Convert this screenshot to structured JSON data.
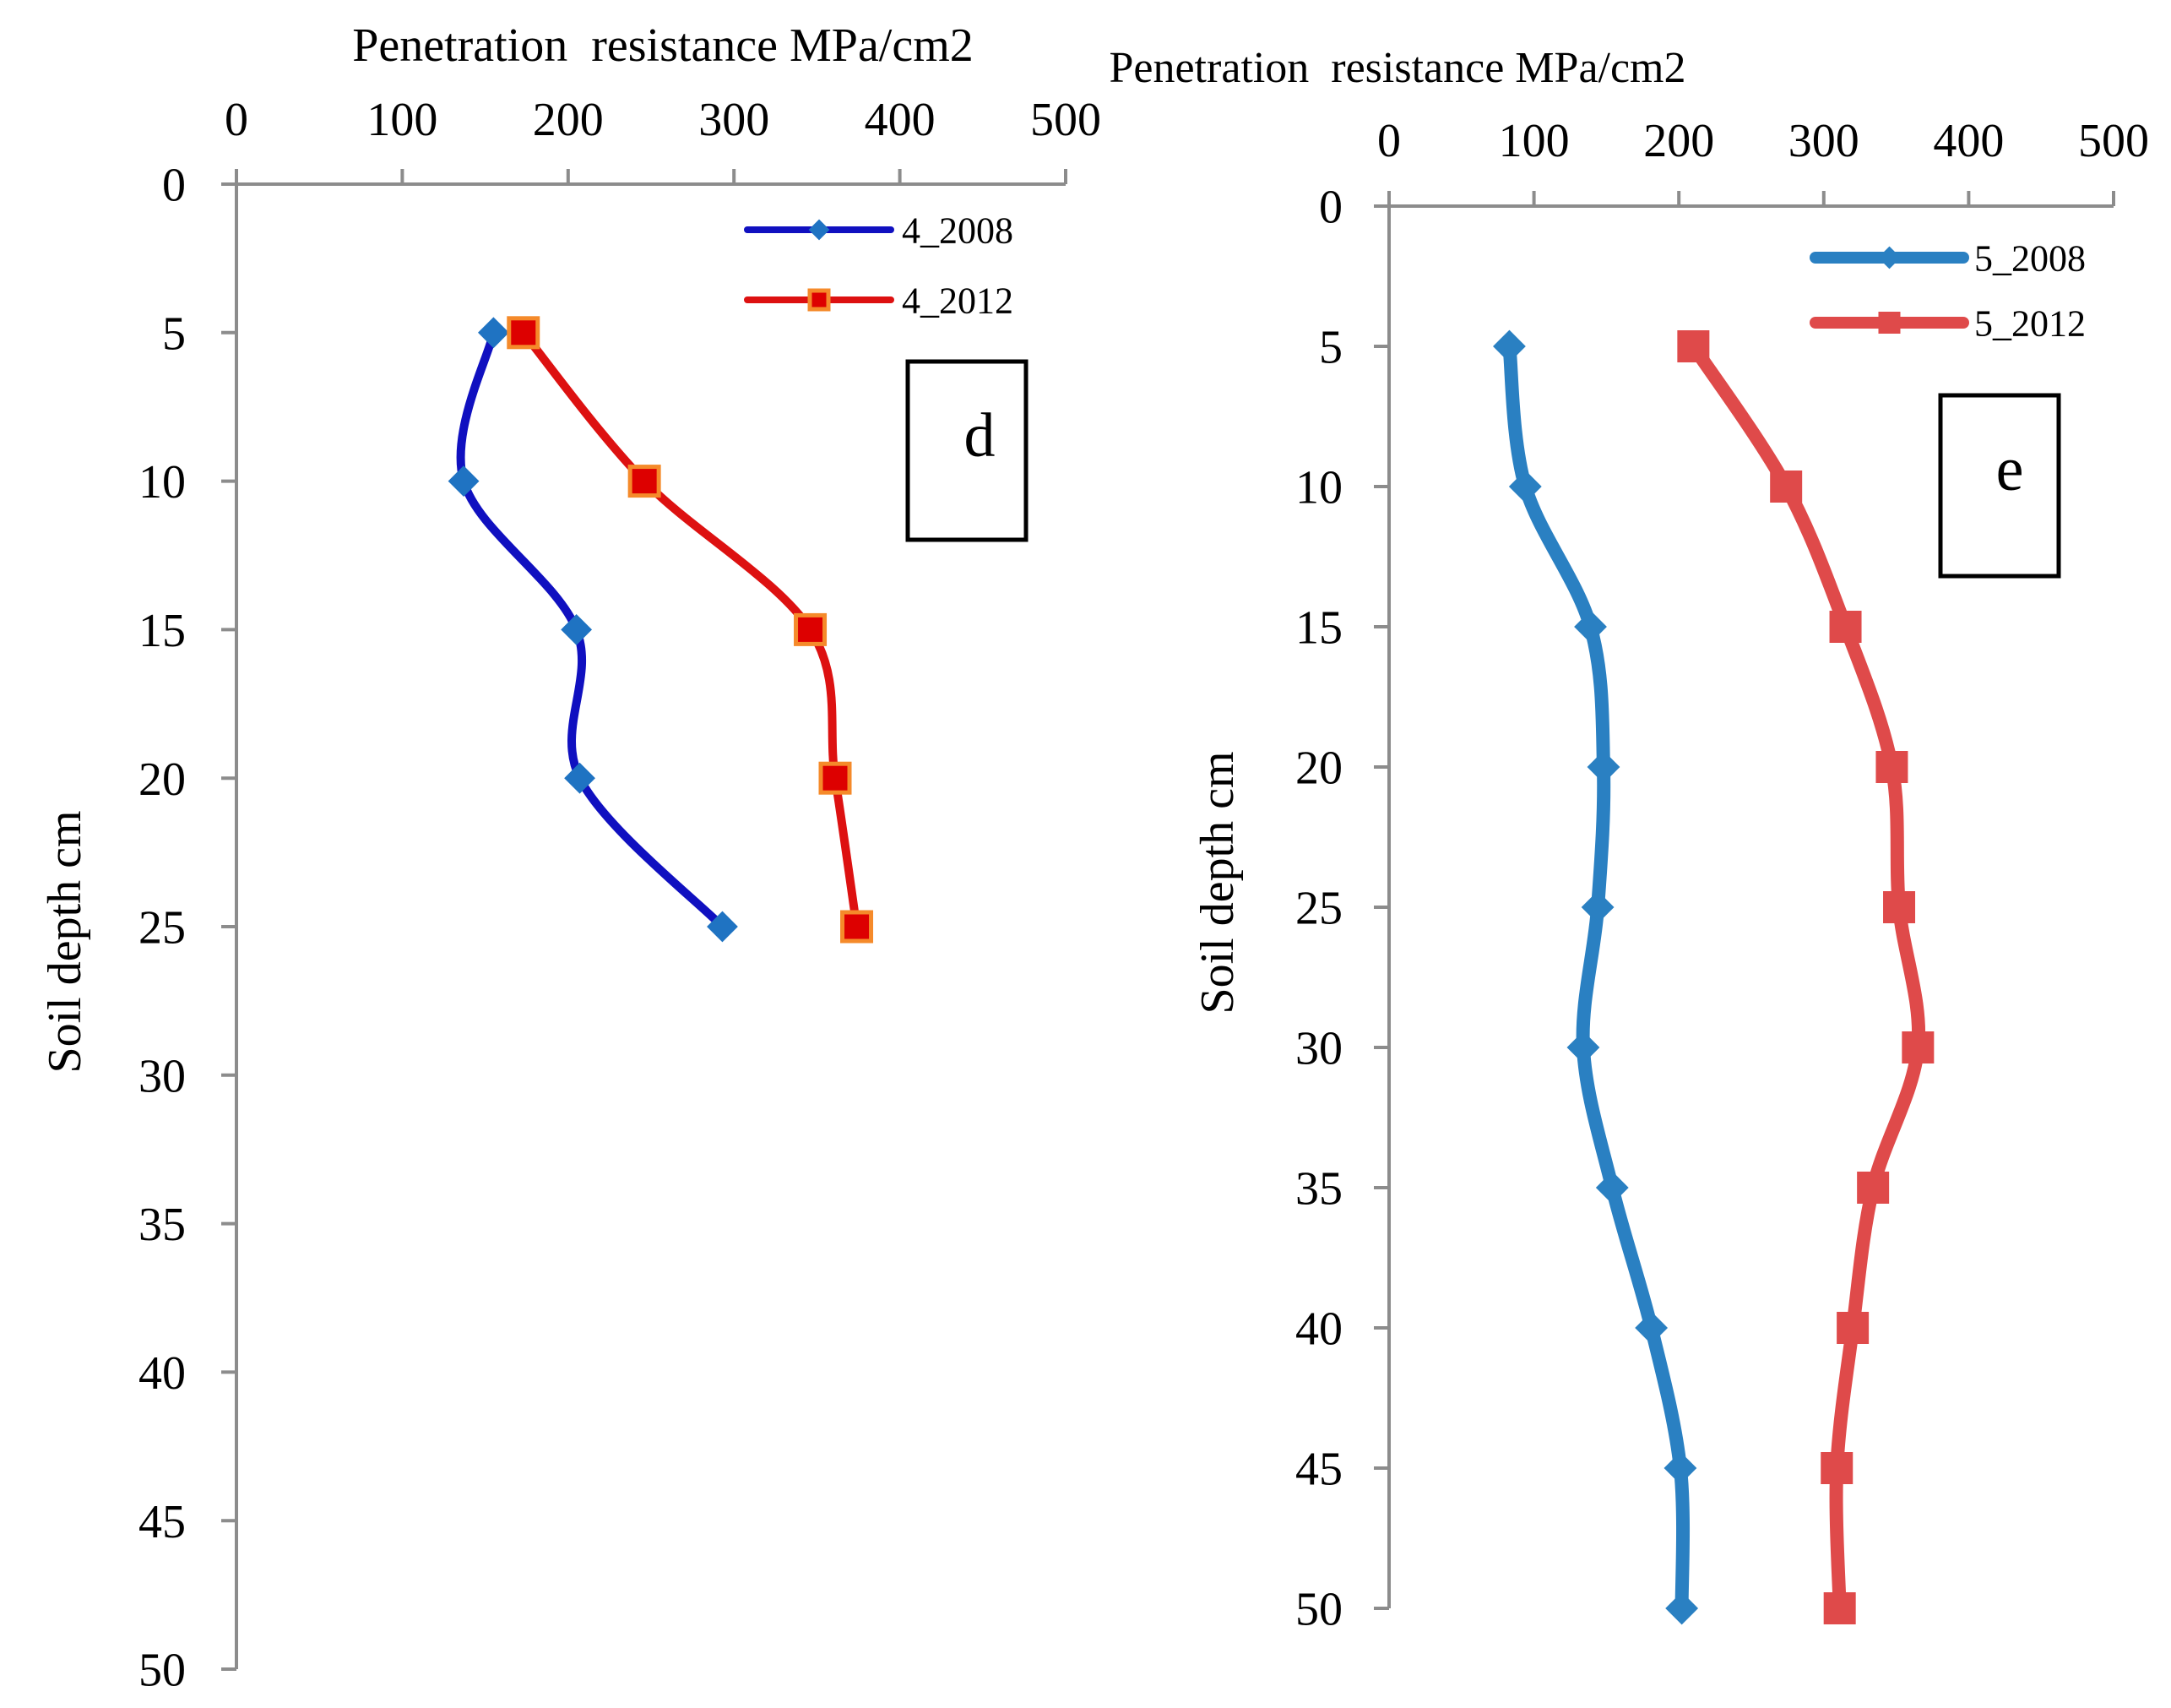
{
  "chart_data": [
    {
      "type": "line",
      "panel_label": "d",
      "xlabel": "Penetration  resistance MPa/cm2",
      "ylabel": "Soil depth cm",
      "xlim": [
        0,
        500
      ],
      "ylim": [
        0,
        50
      ],
      "x_axis_position": "top",
      "y_inverted": true,
      "xticks": [
        0,
        100,
        200,
        300,
        400,
        500
      ],
      "yticks": [
        0,
        5,
        10,
        15,
        20,
        25,
        30,
        35,
        40,
        45,
        50
      ],
      "grid": false,
      "legend_position": "top-right",
      "series": [
        {
          "name": "4_2008",
          "line_color": "#1010C0",
          "marker_color": "#1F73C2",
          "marker": "diamond",
          "x": [
            155,
            137,
            205,
            207,
            293
          ],
          "y": [
            5,
            10,
            15,
            20,
            25
          ]
        },
        {
          "name": "4_2012",
          "line_color": "#DD1111",
          "marker_color": "#DD0000",
          "marker_edge": "#F58A2A",
          "marker": "square",
          "x": [
            173,
            246,
            346,
            361,
            374
          ],
          "y": [
            5,
            10,
            15,
            20,
            25
          ]
        }
      ]
    },
    {
      "type": "line",
      "panel_label": "e",
      "xlabel": "Penetration  resistance MPa/cm2",
      "ylabel": "Soil depth cm",
      "xlim": [
        0,
        500
      ],
      "ylim": [
        0,
        50
      ],
      "x_axis_position": "top",
      "y_inverted": true,
      "xticks": [
        0,
        100,
        200,
        300,
        400,
        500
      ],
      "yticks": [
        0,
        5,
        10,
        15,
        20,
        25,
        30,
        35,
        40,
        45,
        50
      ],
      "grid": false,
      "legend_position": "top-right",
      "series": [
        {
          "name": "5_2008",
          "line_color": "#2A80C2",
          "marker_color": "#2A80C2",
          "marker": "diamond",
          "x": [
            83,
            94,
            139,
            148,
            144,
            134,
            154,
            181,
            201,
            202
          ],
          "y": [
            5,
            10,
            15,
            20,
            25,
            30,
            35,
            40,
            45,
            50
          ]
        },
        {
          "name": "5_2012",
          "line_color": "#DF4A4A",
          "marker_color": "#DF4A4A",
          "marker": "square",
          "x": [
            210,
            274,
            315,
            347,
            352,
            365,
            334,
            320,
            309,
            311
          ],
          "y": [
            5,
            10,
            15,
            20,
            25,
            30,
            35,
            40,
            45,
            50
          ]
        }
      ]
    }
  ]
}
